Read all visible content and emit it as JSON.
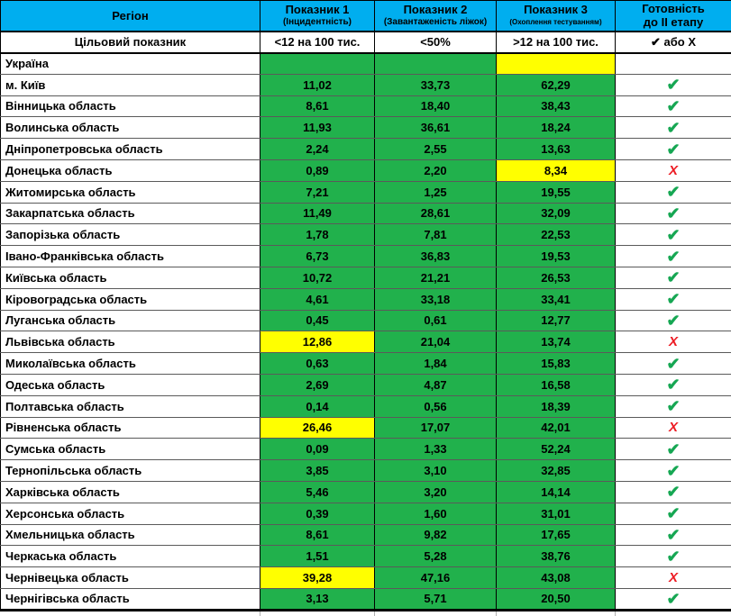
{
  "chart_data": {
    "type": "table",
    "header": {
      "region": "Регіон",
      "col1_title": "Показник 1",
      "col1_sub": "(Інцидентність)",
      "col2_title": "Показник 2",
      "col2_sub": "(Завантаженість ліжок)",
      "col3_title": "Показник 3",
      "col3_sub": "(Охоплення тестуванням)",
      "col4_line1": "Готовність",
      "col4_line2": "до ІІ етапу"
    },
    "target_row": {
      "label": "Цільовий показник",
      "col1": "<12 на 100 тис.",
      "col2": "<50%",
      "col3": ">12 на 100 тис.",
      "col4": "✔ або X"
    },
    "rows": [
      {
        "region": "Україна",
        "values": [
          "",
          "",
          ""
        ],
        "cell_colors": [
          "green",
          "green",
          "yellow"
        ],
        "status": "empty"
      },
      {
        "region": "м. Київ",
        "values": [
          "11,02",
          "33,73",
          "62,29"
        ],
        "cell_colors": [
          "green",
          "green",
          "green"
        ],
        "status": "check"
      },
      {
        "region": "Вінницька область",
        "values": [
          "8,61",
          "18,40",
          "38,43"
        ],
        "cell_colors": [
          "green",
          "green",
          "green"
        ],
        "status": "check"
      },
      {
        "region": "Волинська область",
        "values": [
          "11,93",
          "36,61",
          "18,24"
        ],
        "cell_colors": [
          "green",
          "green",
          "green"
        ],
        "status": "check"
      },
      {
        "region": "Дніпропетровська область",
        "values": [
          "2,24",
          "2,55",
          "13,63"
        ],
        "cell_colors": [
          "green",
          "green",
          "green"
        ],
        "status": "check"
      },
      {
        "region": "Донецька область",
        "values": [
          "0,89",
          "2,20",
          "8,34"
        ],
        "cell_colors": [
          "green",
          "green",
          "yellow"
        ],
        "status": "cross"
      },
      {
        "region": "Житомирська область",
        "values": [
          "7,21",
          "1,25",
          "19,55"
        ],
        "cell_colors": [
          "green",
          "green",
          "green"
        ],
        "status": "check"
      },
      {
        "region": "Закарпатська область",
        "values": [
          "11,49",
          "28,61",
          "32,09"
        ],
        "cell_colors": [
          "green",
          "green",
          "green"
        ],
        "status": "check"
      },
      {
        "region": "Запорізька область",
        "values": [
          "1,78",
          "7,81",
          "22,53"
        ],
        "cell_colors": [
          "green",
          "green",
          "green"
        ],
        "status": "check"
      },
      {
        "region": "Івано-Франківська область",
        "values": [
          "6,73",
          "36,83",
          "19,53"
        ],
        "cell_colors": [
          "green",
          "green",
          "green"
        ],
        "status": "check"
      },
      {
        "region": "Київська область",
        "values": [
          "10,72",
          "21,21",
          "26,53"
        ],
        "cell_colors": [
          "green",
          "green",
          "green"
        ],
        "status": "check"
      },
      {
        "region": "Кіровоградська область",
        "values": [
          "4,61",
          "33,18",
          "33,41"
        ],
        "cell_colors": [
          "green",
          "green",
          "green"
        ],
        "status": "check"
      },
      {
        "region": "Луганська область",
        "values": [
          "0,45",
          "0,61",
          "12,77"
        ],
        "cell_colors": [
          "green",
          "green",
          "green"
        ],
        "status": "check"
      },
      {
        "region": "Львівська область",
        "values": [
          "12,86",
          "21,04",
          "13,74"
        ],
        "cell_colors": [
          "yellow",
          "green",
          "green"
        ],
        "status": "cross"
      },
      {
        "region": "Миколаївська область",
        "values": [
          "0,63",
          "1,84",
          "15,83"
        ],
        "cell_colors": [
          "green",
          "green",
          "green"
        ],
        "status": "check"
      },
      {
        "region": "Одеська область",
        "values": [
          "2,69",
          "4,87",
          "16,58"
        ],
        "cell_colors": [
          "green",
          "green",
          "green"
        ],
        "status": "check"
      },
      {
        "region": "Полтавська область",
        "values": [
          "0,14",
          "0,56",
          "18,39"
        ],
        "cell_colors": [
          "green",
          "green",
          "green"
        ],
        "status": "check"
      },
      {
        "region": "Рівненська область",
        "values": [
          "26,46",
          "17,07",
          "42,01"
        ],
        "cell_colors": [
          "yellow",
          "green",
          "green"
        ],
        "status": "cross"
      },
      {
        "region": "Сумська область",
        "values": [
          "0,09",
          "1,33",
          "52,24"
        ],
        "cell_colors": [
          "green",
          "green",
          "green"
        ],
        "status": "check"
      },
      {
        "region": "Тернопільська область",
        "values": [
          "3,85",
          "3,10",
          "32,85"
        ],
        "cell_colors": [
          "green",
          "green",
          "green"
        ],
        "status": "check"
      },
      {
        "region": "Харківська область",
        "values": [
          "5,46",
          "3,20",
          "14,14"
        ],
        "cell_colors": [
          "green",
          "green",
          "green"
        ],
        "status": "check"
      },
      {
        "region": "Херсонська область",
        "values": [
          "0,39",
          "1,60",
          "31,01"
        ],
        "cell_colors": [
          "green",
          "green",
          "green"
        ],
        "status": "check"
      },
      {
        "region": "Хмельницька область",
        "values": [
          "8,61",
          "9,82",
          "17,65"
        ],
        "cell_colors": [
          "green",
          "green",
          "green"
        ],
        "status": "check"
      },
      {
        "region": "Черкаська область",
        "values": [
          "1,51",
          "5,28",
          "38,76"
        ],
        "cell_colors": [
          "green",
          "green",
          "green"
        ],
        "status": "check"
      },
      {
        "region": "Чернівецька область",
        "values": [
          "39,28",
          "47,16",
          "43,08"
        ],
        "cell_colors": [
          "yellow",
          "green",
          "green"
        ],
        "status": "cross"
      },
      {
        "region": "Чернігівська область",
        "values": [
          "3,13",
          "5,71",
          "20,50"
        ],
        "cell_colors": [
          "green",
          "green",
          "green"
        ],
        "status": "check"
      }
    ]
  },
  "colors": {
    "header_blue": "#00AEEF",
    "cell_green": "#21B14C",
    "cell_yellow": "#FFFF00",
    "cell_gray": "#C8C8C8",
    "check_green": "#16A753",
    "cross_red": "#ED1C24"
  },
  "glyphs": {
    "check": "✔",
    "cross": "X"
  }
}
